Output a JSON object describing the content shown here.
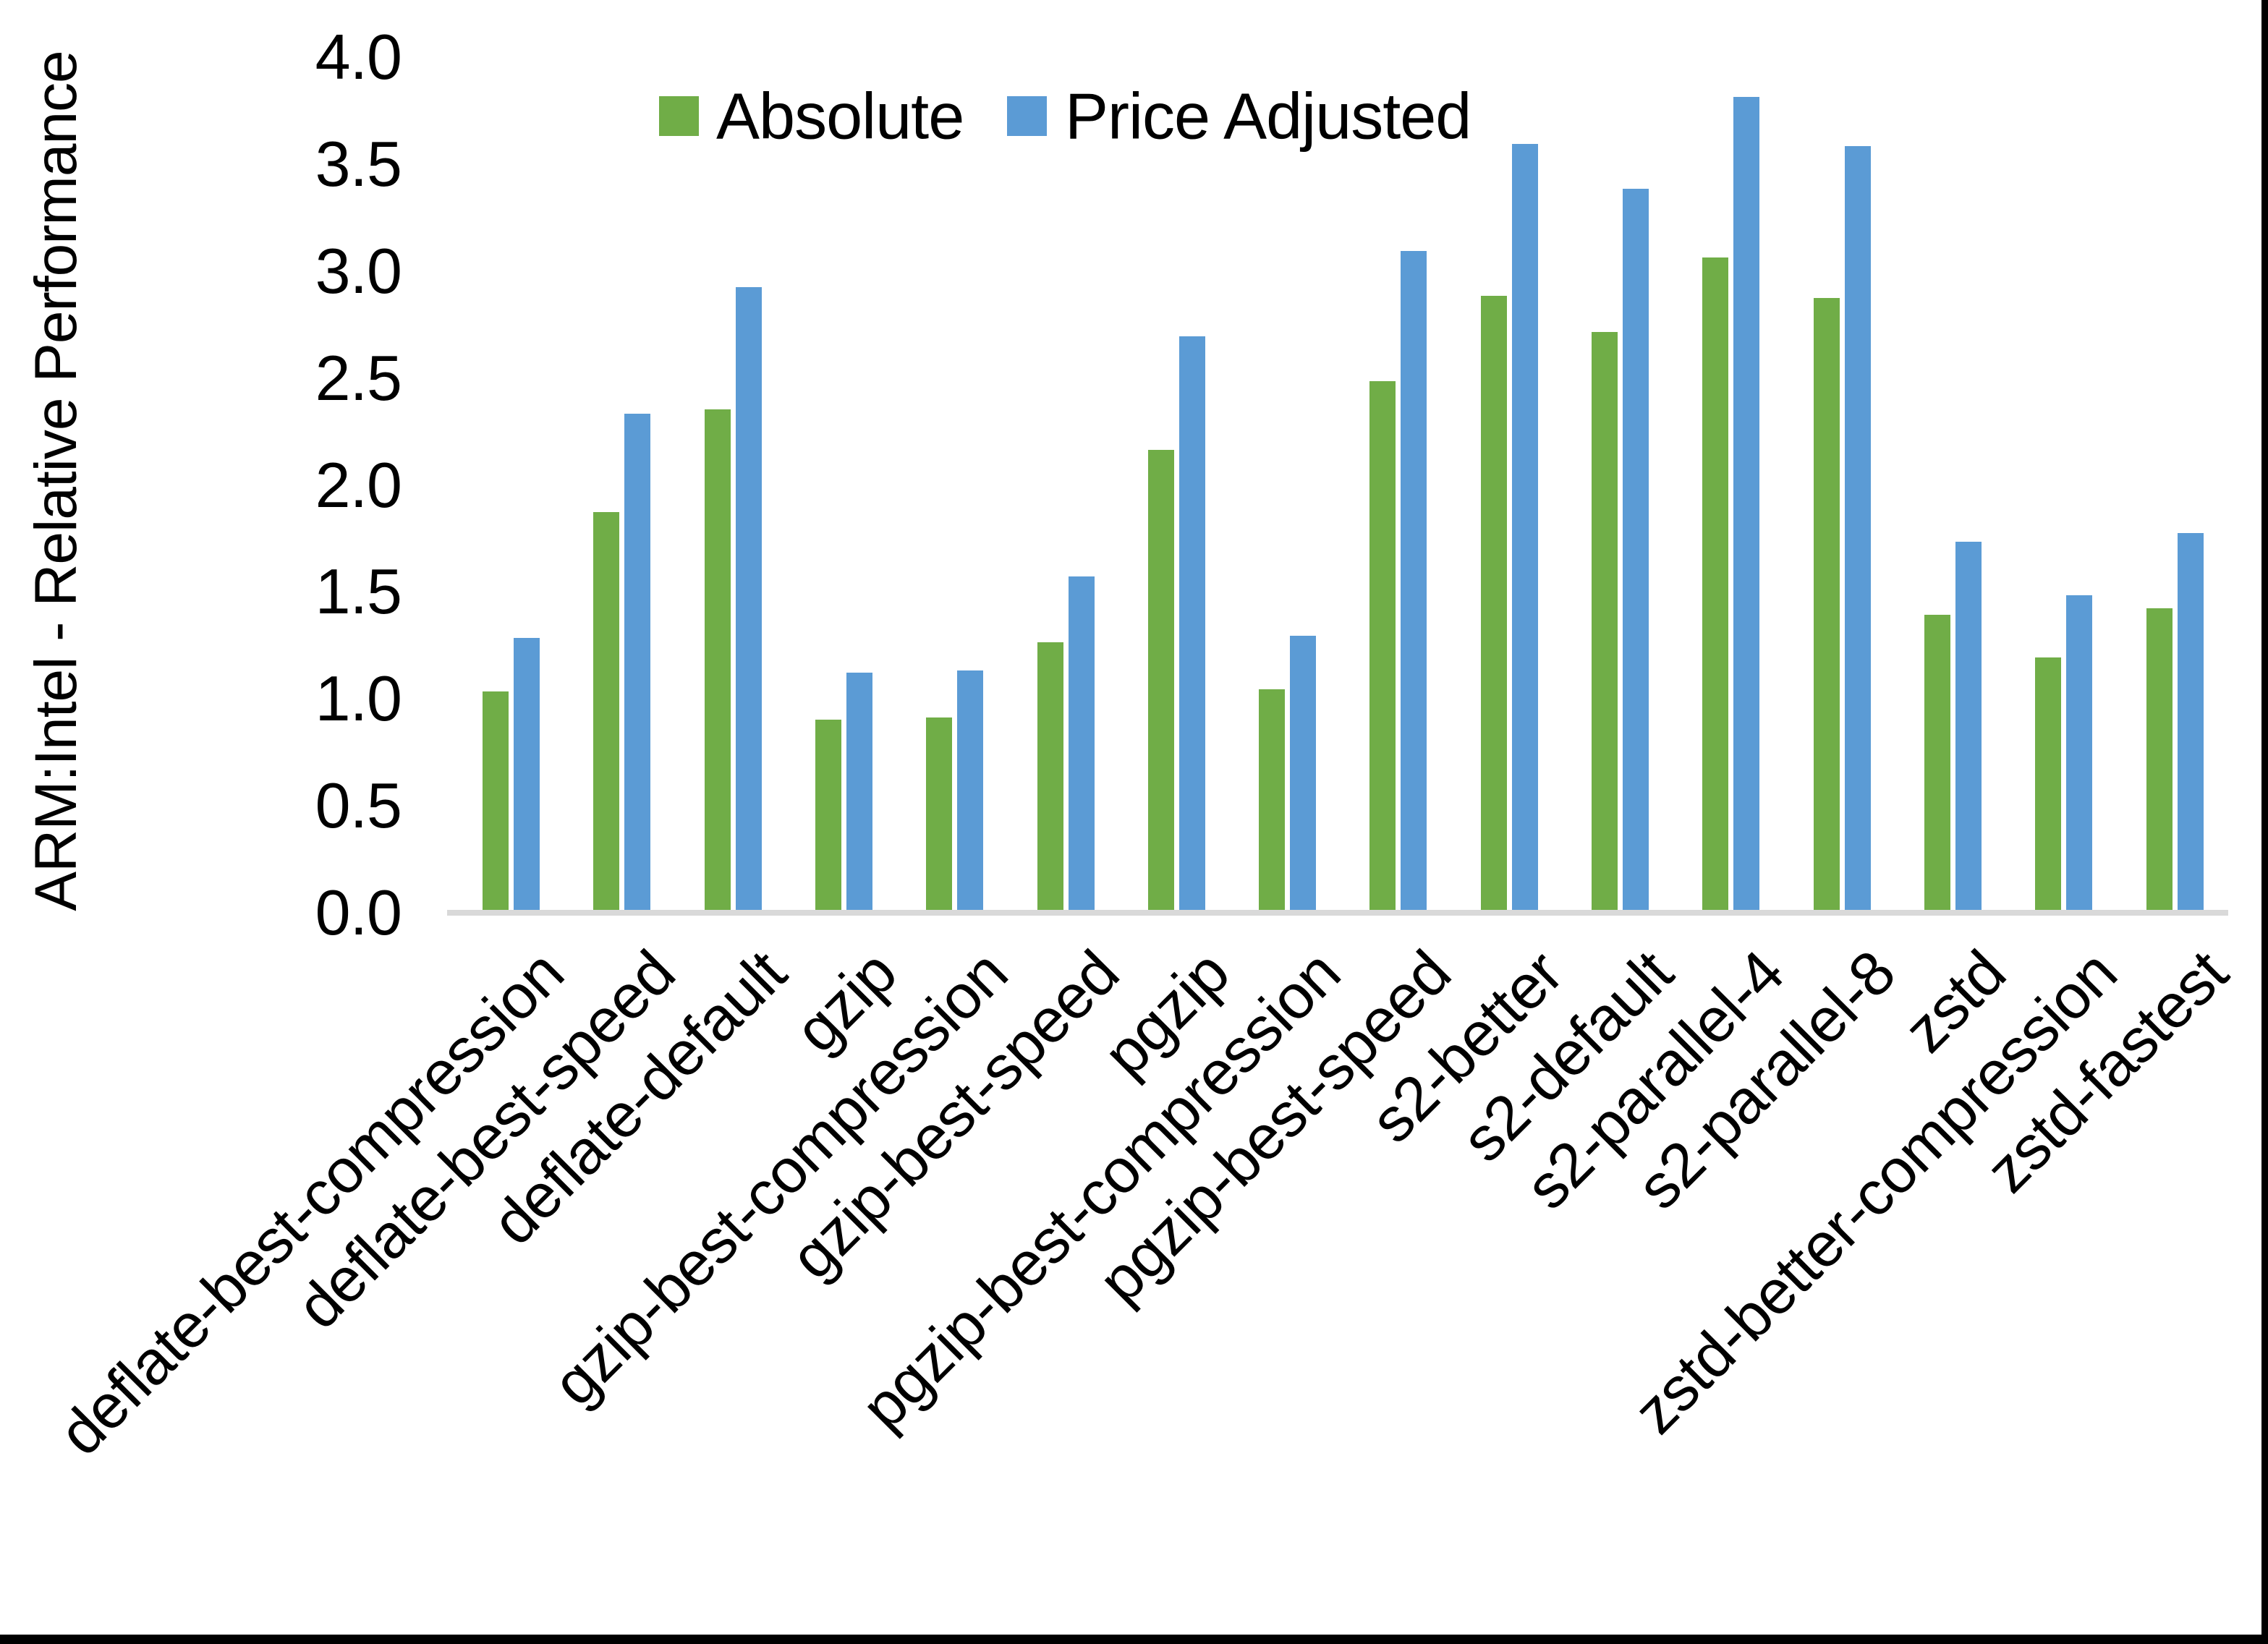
{
  "chart_data": {
    "type": "bar",
    "title": "",
    "xlabel": "",
    "ylabel": "ARM:Intel - Relative Performance",
    "ylim": [
      0.0,
      4.0
    ],
    "ytick_step": 0.5,
    "ytick_labels": [
      "0.0",
      "0.5",
      "1.0",
      "1.5",
      "2.0",
      "2.5",
      "3.0",
      "3.5",
      "4.0"
    ],
    "grid": false,
    "legend_position": "top-center",
    "categories": [
      "deflate-best-compression",
      "deflate-best-speed",
      "deflate-default",
      "gzip",
      "gzip-best-compression",
      "gzip-best-speed",
      "pgzip",
      "pgzip-best-compression",
      "pgzip-best-speed",
      "s2-better",
      "s2-default",
      "s2-parallel-4",
      "s2-parallel-8",
      "zstd",
      "zstd-better-compression",
      "zstd-fastest"
    ],
    "series": [
      {
        "name": "Absolute",
        "color": "#70AD47",
        "values": [
          1.02,
          1.86,
          2.34,
          0.89,
          0.9,
          1.25,
          2.15,
          1.03,
          2.47,
          2.87,
          2.7,
          3.05,
          2.86,
          1.38,
          1.18,
          1.41
        ]
      },
      {
        "name": "Price Adjusted",
        "color": "#5B9BD5",
        "values": [
          1.27,
          2.32,
          2.91,
          1.11,
          1.12,
          1.56,
          2.68,
          1.28,
          3.08,
          3.58,
          3.37,
          3.8,
          3.57,
          1.72,
          1.47,
          1.76
        ]
      }
    ]
  },
  "colors": {
    "axis_line": "#D9D9D9",
    "text": "#000000",
    "frame": "#000000",
    "background": "#FFFFFF"
  }
}
